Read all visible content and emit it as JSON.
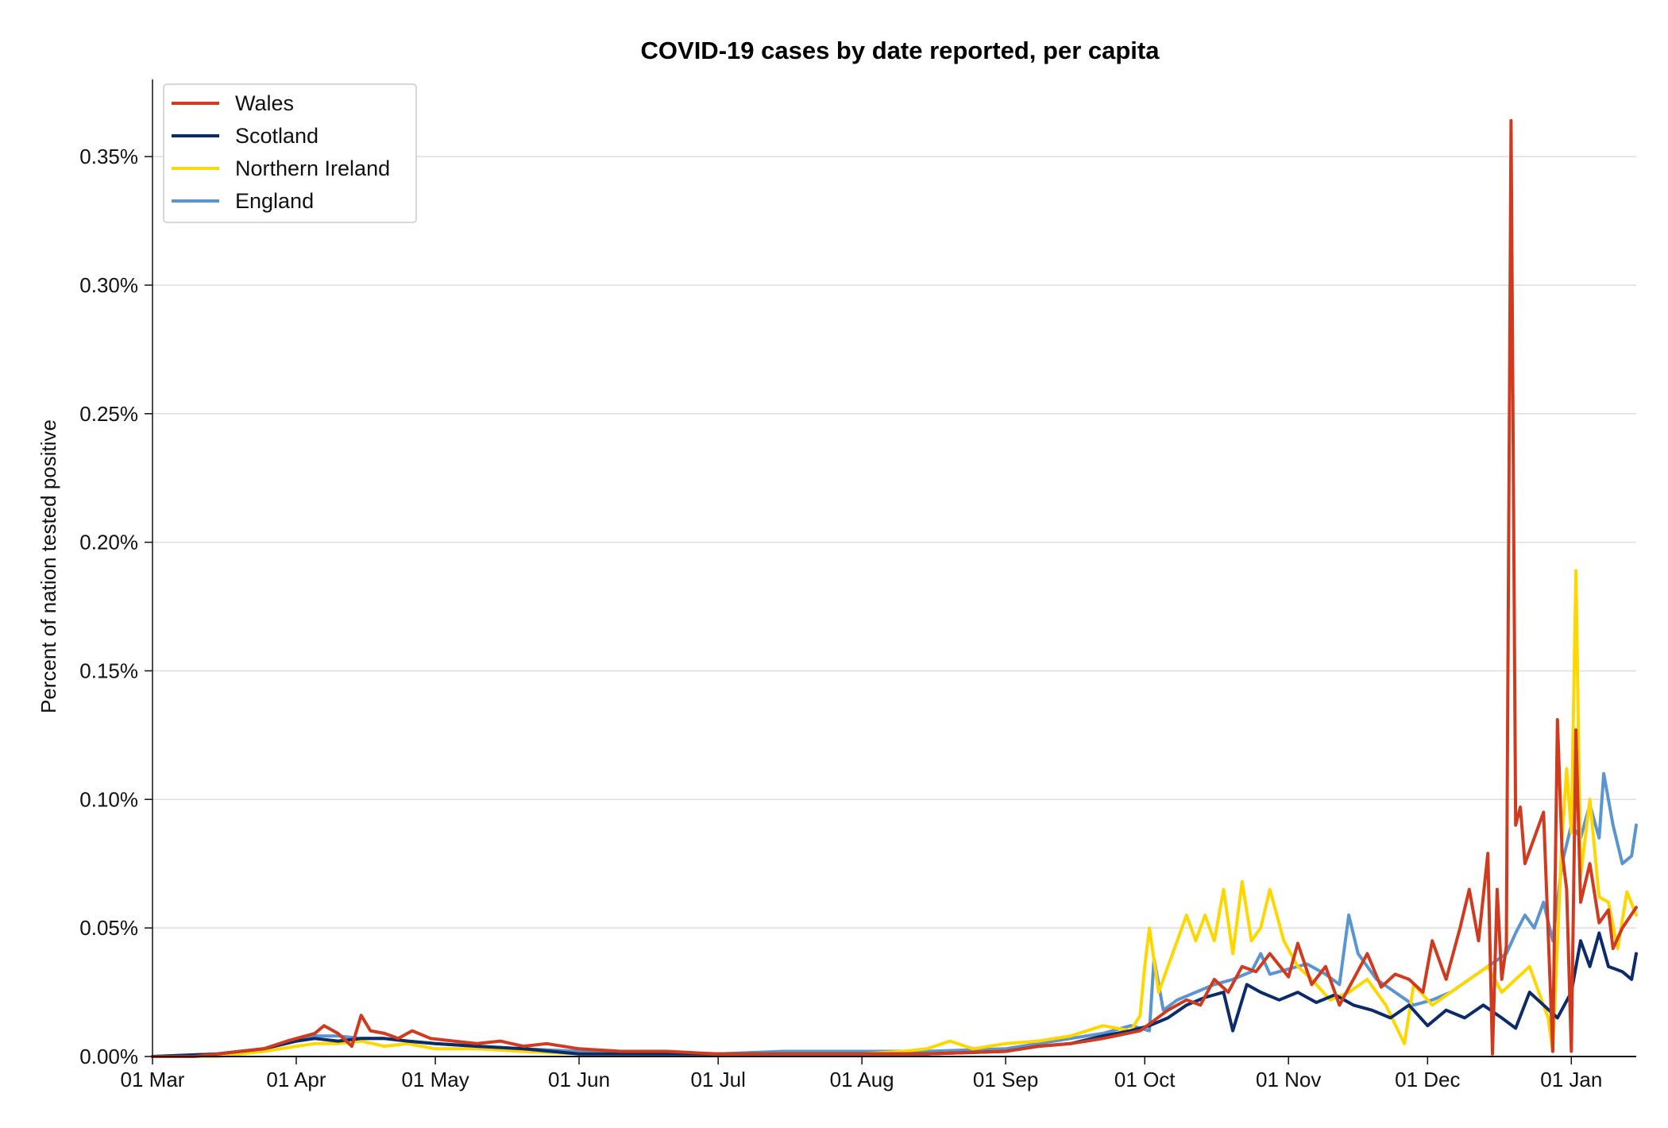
{
  "chart_data": {
    "type": "line",
    "title": "COVID-19 cases by date reported, per capita",
    "xlabel": "",
    "ylabel": "Percent of nation tested positive",
    "x_ticks": [
      "01 Mar",
      "01 Apr",
      "01 May",
      "01 Jun",
      "01 Jul",
      "01 Aug",
      "01 Sep",
      "01 Oct",
      "01 Nov",
      "01 Dec",
      "01 Jan"
    ],
    "y_ticks": [
      "0.00%",
      "0.05%",
      "0.10%",
      "0.15%",
      "0.20%",
      "0.25%",
      "0.30%",
      "0.35%"
    ],
    "xlim": [
      "2020-03-01",
      "2021-01-15"
    ],
    "ylim": [
      0,
      0.38
    ],
    "y_unit": "%",
    "grid": "horizontal",
    "legend_position": "top-left",
    "series": [
      {
        "name": "Wales",
        "color": "#d03a1f",
        "points": [
          [
            "2020-03-01",
            0
          ],
          [
            "2020-03-10",
            0
          ],
          [
            "2020-03-20",
            0.002
          ],
          [
            "2020-03-25",
            0.003
          ],
          [
            "2020-03-30",
            0.006
          ],
          [
            "2020-04-05",
            0.009
          ],
          [
            "2020-04-07",
            0.012
          ],
          [
            "2020-04-10",
            0.009
          ],
          [
            "2020-04-13",
            0.004
          ],
          [
            "2020-04-15",
            0.016
          ],
          [
            "2020-04-17",
            0.01
          ],
          [
            "2020-04-20",
            0.009
          ],
          [
            "2020-04-23",
            0.007
          ],
          [
            "2020-04-26",
            0.01
          ],
          [
            "2020-04-30",
            0.007
          ],
          [
            "2020-05-05",
            0.006
          ],
          [
            "2020-05-10",
            0.005
          ],
          [
            "2020-05-15",
            0.006
          ],
          [
            "2020-05-20",
            0.004
          ],
          [
            "2020-05-25",
            0.005
          ],
          [
            "2020-06-01",
            0.003
          ],
          [
            "2020-06-10",
            0.002
          ],
          [
            "2020-06-20",
            0.002
          ],
          [
            "2020-07-01",
            0.001
          ],
          [
            "2020-07-15",
            0.001
          ],
          [
            "2020-08-01",
            0.001
          ],
          [
            "2020-08-15",
            0.001
          ],
          [
            "2020-09-01",
            0.002
          ],
          [
            "2020-09-08",
            0.004
          ],
          [
            "2020-09-15",
            0.005
          ],
          [
            "2020-09-22",
            0.007
          ],
          [
            "2020-09-30",
            0.01
          ],
          [
            "2020-10-03",
            0.014
          ],
          [
            "2020-10-06",
            0.018
          ],
          [
            "2020-10-10",
            0.022
          ],
          [
            "2020-10-13",
            0.02
          ],
          [
            "2020-10-16",
            0.03
          ],
          [
            "2020-10-19",
            0.025
          ],
          [
            "2020-10-22",
            0.035
          ],
          [
            "2020-10-25",
            0.033
          ],
          [
            "2020-10-28",
            0.04
          ],
          [
            "2020-11-01",
            0.031
          ],
          [
            "2020-11-03",
            0.044
          ],
          [
            "2020-11-06",
            0.028
          ],
          [
            "2020-11-09",
            0.035
          ],
          [
            "2020-11-12",
            0.02
          ],
          [
            "2020-11-15",
            0.03
          ],
          [
            "2020-11-18",
            0.04
          ],
          [
            "2020-11-21",
            0.027
          ],
          [
            "2020-11-24",
            0.032
          ],
          [
            "2020-11-27",
            0.03
          ],
          [
            "2020-11-30",
            0.025
          ],
          [
            "2020-12-02",
            0.045
          ],
          [
            "2020-12-05",
            0.03
          ],
          [
            "2020-12-08",
            0.05
          ],
          [
            "2020-12-10",
            0.065
          ],
          [
            "2020-12-12",
            0.045
          ],
          [
            "2020-12-14",
            0.079
          ],
          [
            "2020-12-15",
            0.001
          ],
          [
            "2020-12-16",
            0.065
          ],
          [
            "2020-12-17",
            0.03
          ],
          [
            "2020-12-18",
            0.043
          ],
          [
            "2020-12-19",
            0.364
          ],
          [
            "2020-12-20",
            0.09
          ],
          [
            "2020-12-21",
            0.097
          ],
          [
            "2020-12-22",
            0.075
          ],
          [
            "2020-12-24",
            0.085
          ],
          [
            "2020-12-26",
            0.095
          ],
          [
            "2020-12-28",
            0.002
          ],
          [
            "2020-12-29",
            0.131
          ],
          [
            "2020-12-30",
            0.08
          ],
          [
            "2020-12-31",
            0.065
          ],
          [
            "2021-01-01",
            0.002
          ],
          [
            "2021-01-02",
            0.127
          ],
          [
            "2021-01-03",
            0.06
          ],
          [
            "2021-01-05",
            0.075
          ],
          [
            "2021-01-07",
            0.052
          ],
          [
            "2021-01-09",
            0.057
          ],
          [
            "2021-01-10",
            0.042
          ],
          [
            "2021-01-12",
            0.05
          ],
          [
            "2021-01-15",
            0.058
          ]
        ]
      },
      {
        "name": "Scotland",
        "color": "#0b2b6b",
        "points": [
          [
            "2020-03-01",
            0
          ],
          [
            "2020-03-15",
            0.001
          ],
          [
            "2020-03-25",
            0.003
          ],
          [
            "2020-04-01",
            0.006
          ],
          [
            "2020-04-05",
            0.007
          ],
          [
            "2020-04-10",
            0.006
          ],
          [
            "2020-04-15",
            0.007
          ],
          [
            "2020-04-20",
            0.007
          ],
          [
            "2020-04-25",
            0.006
          ],
          [
            "2020-05-01",
            0.005
          ],
          [
            "2020-05-10",
            0.004
          ],
          [
            "2020-05-20",
            0.003
          ],
          [
            "2020-06-01",
            0.001
          ],
          [
            "2020-06-15",
            0.001
          ],
          [
            "2020-07-01",
            0.001
          ],
          [
            "2020-08-01",
            0.001
          ],
          [
            "2020-08-15",
            0.001
          ],
          [
            "2020-09-01",
            0.002
          ],
          [
            "2020-09-08",
            0.004
          ],
          [
            "2020-09-15",
            0.005
          ],
          [
            "2020-09-22",
            0.008
          ],
          [
            "2020-09-28",
            0.01
          ],
          [
            "2020-10-02",
            0.012
          ],
          [
            "2020-10-06",
            0.015
          ],
          [
            "2020-10-10",
            0.02
          ],
          [
            "2020-10-14",
            0.023
          ],
          [
            "2020-10-18",
            0.025
          ],
          [
            "2020-10-20",
            0.01
          ],
          [
            "2020-10-23",
            0.028
          ],
          [
            "2020-10-26",
            0.025
          ],
          [
            "2020-10-30",
            0.022
          ],
          [
            "2020-11-03",
            0.025
          ],
          [
            "2020-11-07",
            0.021
          ],
          [
            "2020-11-11",
            0.024
          ],
          [
            "2020-11-15",
            0.02
          ],
          [
            "2020-11-19",
            0.018
          ],
          [
            "2020-11-23",
            0.015
          ],
          [
            "2020-11-27",
            0.02
          ],
          [
            "2020-12-01",
            0.012
          ],
          [
            "2020-12-05",
            0.018
          ],
          [
            "2020-12-09",
            0.015
          ],
          [
            "2020-12-13",
            0.02
          ],
          [
            "2020-12-17",
            0.015
          ],
          [
            "2020-12-20",
            0.011
          ],
          [
            "2020-12-23",
            0.025
          ],
          [
            "2020-12-26",
            0.02
          ],
          [
            "2020-12-29",
            0.015
          ],
          [
            "2021-01-01",
            0.025
          ],
          [
            "2021-01-03",
            0.045
          ],
          [
            "2021-01-05",
            0.035
          ],
          [
            "2021-01-07",
            0.048
          ],
          [
            "2021-01-09",
            0.035
          ],
          [
            "2021-01-12",
            0.033
          ],
          [
            "2021-01-14",
            0.03
          ],
          [
            "2021-01-15",
            0.04
          ]
        ]
      },
      {
        "name": "Northern Ireland",
        "color": "#ffd700",
        "points": [
          [
            "2020-03-01",
            0
          ],
          [
            "2020-03-15",
            0
          ],
          [
            "2020-03-25",
            0.002
          ],
          [
            "2020-04-01",
            0.004
          ],
          [
            "2020-04-05",
            0.005
          ],
          [
            "2020-04-10",
            0.005
          ],
          [
            "2020-04-15",
            0.006
          ],
          [
            "2020-04-20",
            0.004
          ],
          [
            "2020-04-25",
            0.005
          ],
          [
            "2020-05-01",
            0.003
          ],
          [
            "2020-05-10",
            0.003
          ],
          [
            "2020-05-20",
            0.002
          ],
          [
            "2020-06-01",
            0.001
          ],
          [
            "2020-06-15",
            0.001
          ],
          [
            "2020-07-01",
            0.001
          ],
          [
            "2020-08-01",
            0.001
          ],
          [
            "2020-08-10",
            0.002
          ],
          [
            "2020-08-15",
            0.003
          ],
          [
            "2020-08-20",
            0.006
          ],
          [
            "2020-08-25",
            0.003
          ],
          [
            "2020-09-01",
            0.005
          ],
          [
            "2020-09-08",
            0.006
          ],
          [
            "2020-09-15",
            0.008
          ],
          [
            "2020-09-22",
            0.012
          ],
          [
            "2020-09-28",
            0.01
          ],
          [
            "2020-09-30",
            0.016
          ],
          [
            "2020-10-01",
            0.035
          ],
          [
            "2020-10-02",
            0.05
          ],
          [
            "2020-10-04",
            0.025
          ],
          [
            "2020-10-08",
            0.045
          ],
          [
            "2020-10-10",
            0.055
          ],
          [
            "2020-10-12",
            0.045
          ],
          [
            "2020-10-14",
            0.055
          ],
          [
            "2020-10-16",
            0.045
          ],
          [
            "2020-10-18",
            0.065
          ],
          [
            "2020-10-20",
            0.04
          ],
          [
            "2020-10-22",
            0.068
          ],
          [
            "2020-10-24",
            0.045
          ],
          [
            "2020-10-26",
            0.05
          ],
          [
            "2020-10-28",
            0.065
          ],
          [
            "2020-10-31",
            0.045
          ],
          [
            "2020-11-03",
            0.035
          ],
          [
            "2020-11-06",
            0.03
          ],
          [
            "2020-11-10",
            0.022
          ],
          [
            "2020-11-14",
            0.025
          ],
          [
            "2020-11-18",
            0.03
          ],
          [
            "2020-11-22",
            0.02
          ],
          [
            "2020-11-26",
            0.005
          ],
          [
            "2020-11-28",
            0.028
          ],
          [
            "2020-12-02",
            0.02
          ],
          [
            "2020-12-06",
            0.025
          ],
          [
            "2020-12-10",
            0.03
          ],
          [
            "2020-12-14",
            0.035
          ],
          [
            "2020-12-17",
            0.025
          ],
          [
            "2020-12-20",
            0.03
          ],
          [
            "2020-12-23",
            0.035
          ],
          [
            "2020-12-25",
            0.025
          ],
          [
            "2020-12-27",
            0.015
          ],
          [
            "2020-12-28",
            0.002
          ],
          [
            "2020-12-30",
            0.085
          ],
          [
            "2020-12-31",
            0.112
          ],
          [
            "2021-01-01",
            0.087
          ],
          [
            "2021-01-02",
            0.189
          ],
          [
            "2021-01-03",
            0.07
          ],
          [
            "2021-01-05",
            0.1
          ],
          [
            "2021-01-07",
            0.062
          ],
          [
            "2021-01-09",
            0.06
          ],
          [
            "2021-01-11",
            0.042
          ],
          [
            "2021-01-13",
            0.064
          ],
          [
            "2021-01-15",
            0.055
          ]
        ]
      },
      {
        "name": "England",
        "color": "#5b95d0",
        "points": [
          [
            "2020-03-01",
            0
          ],
          [
            "2020-03-15",
            0.001
          ],
          [
            "2020-03-25",
            0.003
          ],
          [
            "2020-04-01",
            0.006
          ],
          [
            "2020-04-05",
            0.008
          ],
          [
            "2020-04-10",
            0.008
          ],
          [
            "2020-04-15",
            0.007
          ],
          [
            "2020-04-20",
            0.007
          ],
          [
            "2020-04-25",
            0.006
          ],
          [
            "2020-05-01",
            0.005
          ],
          [
            "2020-05-10",
            0.004
          ],
          [
            "2020-05-20",
            0.003
          ],
          [
            "2020-06-01",
            0.002
          ],
          [
            "2020-06-15",
            0.001
          ],
          [
            "2020-07-01",
            0.001
          ],
          [
            "2020-07-15",
            0.002
          ],
          [
            "2020-08-01",
            0.002
          ],
          [
            "2020-08-15",
            0.002
          ],
          [
            "2020-09-01",
            0.003
          ],
          [
            "2020-09-08",
            0.005
          ],
          [
            "2020-09-15",
            0.007
          ],
          [
            "2020-09-22",
            0.009
          ],
          [
            "2020-09-28",
            0.012
          ],
          [
            "2020-10-02",
            0.01
          ],
          [
            "2020-10-03",
            0.038
          ],
          [
            "2020-10-05",
            0.018
          ],
          [
            "2020-10-08",
            0.022
          ],
          [
            "2020-10-12",
            0.025
          ],
          [
            "2020-10-16",
            0.028
          ],
          [
            "2020-10-20",
            0.03
          ],
          [
            "2020-10-24",
            0.033
          ],
          [
            "2020-10-26",
            0.04
          ],
          [
            "2020-10-28",
            0.032
          ],
          [
            "2020-11-01",
            0.034
          ],
          [
            "2020-11-05",
            0.036
          ],
          [
            "2020-11-09",
            0.032
          ],
          [
            "2020-11-12",
            0.028
          ],
          [
            "2020-11-14",
            0.055
          ],
          [
            "2020-11-16",
            0.04
          ],
          [
            "2020-11-20",
            0.03
          ],
          [
            "2020-11-24",
            0.025
          ],
          [
            "2020-11-28",
            0.02
          ],
          [
            "2020-12-02",
            0.022
          ],
          [
            "2020-12-06",
            0.025
          ],
          [
            "2020-12-10",
            0.03
          ],
          [
            "2020-12-14",
            0.035
          ],
          [
            "2020-12-18",
            0.04
          ],
          [
            "2020-12-20",
            0.048
          ],
          [
            "2020-12-22",
            0.055
          ],
          [
            "2020-12-24",
            0.05
          ],
          [
            "2020-12-26",
            0.06
          ],
          [
            "2020-12-28",
            0.045
          ],
          [
            "2020-12-30",
            0.075
          ],
          [
            "2021-01-01",
            0.09
          ],
          [
            "2021-01-03",
            0.085
          ],
          [
            "2021-01-05",
            0.098
          ],
          [
            "2021-01-07",
            0.085
          ],
          [
            "2021-01-08",
            0.11
          ],
          [
            "2021-01-10",
            0.09
          ],
          [
            "2021-01-12",
            0.075
          ],
          [
            "2021-01-14",
            0.078
          ],
          [
            "2021-01-15",
            0.09
          ]
        ]
      }
    ]
  }
}
